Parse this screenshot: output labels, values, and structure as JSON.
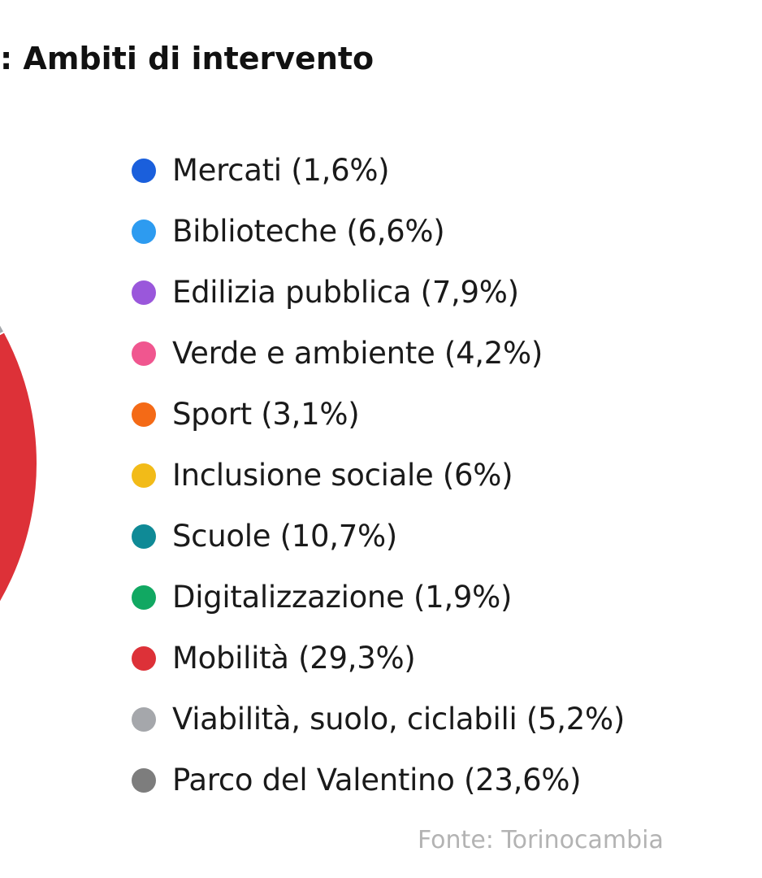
{
  "chart_data": {
    "type": "pie",
    "title": ": Ambiti di intervento",
    "legend_position": "right",
    "slices": [
      {
        "label": "Mercati (1,6%)",
        "value": 1.6,
        "color": "#1a5fdc"
      },
      {
        "label": "Biblioteche (6,6%)",
        "value": 6.6,
        "color": "#2d9bf0"
      },
      {
        "label": "Edilizia pubblica (7,9%)",
        "value": 7.9,
        "color": "#9a57db"
      },
      {
        "label": "Verde e ambiente (4,2%)",
        "value": 4.2,
        "color": "#f0568f"
      },
      {
        "label": "Sport (3,1%)",
        "value": 3.1,
        "color": "#f46a16"
      },
      {
        "label": "Inclusione sociale (6%)",
        "value": 6,
        "color": "#f2bb18"
      },
      {
        "label": "Scuole (10,7%)",
        "value": 10.7,
        "color": "#0f8a96"
      },
      {
        "label": "Digitalizzazione (1,9%)",
        "value": 1.9,
        "color": "#11a862"
      },
      {
        "label": "Mobilità (29,3%)",
        "value": 29.3,
        "color": "#dd3138"
      },
      {
        "label": "Viabilità, suolo, ciclabili (5,2%)",
        "value": 5.2,
        "color": "#a5a7ab"
      },
      {
        "label": "Parco del Valentino (23,6%)",
        "value": 23.6,
        "color": "#7d7d7d"
      }
    ],
    "source": "Fonte: Torinocambia"
  }
}
